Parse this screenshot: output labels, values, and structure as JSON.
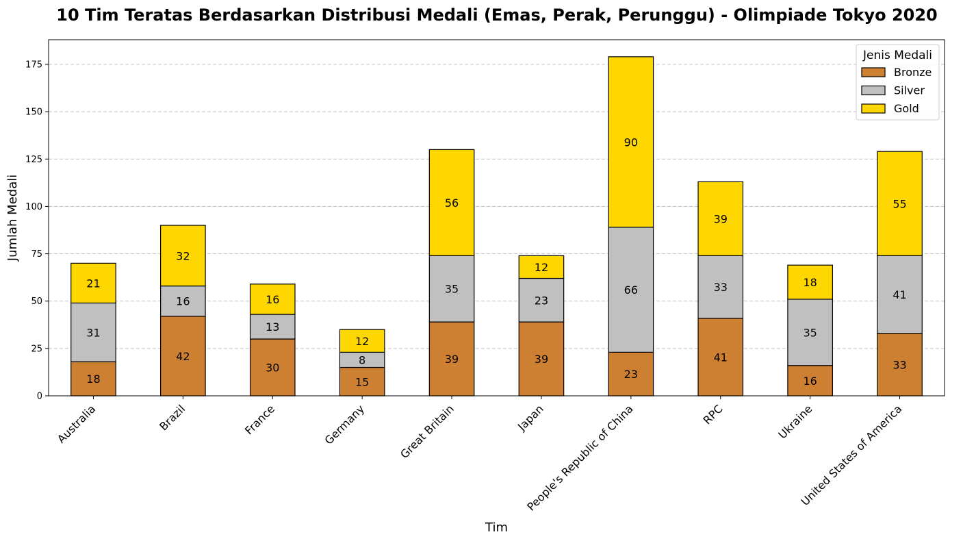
{
  "chart_data": {
    "type": "bar",
    "stacked": true,
    "title": "10 Tim Teratas Berdasarkan Distribusi Medali (Emas, Perak, Perunggu) - Olimpiade Tokyo 2020",
    "xlabel": "Tim",
    "ylabel": "Jumlah Medali",
    "ylim": [
      0,
      188
    ],
    "yticks": [
      0,
      25,
      50,
      75,
      100,
      125,
      150,
      175
    ],
    "grid": "horizontal dashed",
    "legend": {
      "title": "Jenis Medali",
      "placement": "top-right"
    },
    "categories": [
      "Australia",
      "Brazil",
      "France",
      "Germany",
      "Great Britain",
      "Japan",
      "People's Republic of China",
      "RPC",
      "Ukraine",
      "United States of America"
    ],
    "series": [
      {
        "name": "Bronze",
        "color": "#CD7F32",
        "values": [
          18,
          42,
          30,
          15,
          39,
          39,
          23,
          41,
          16,
          33
        ]
      },
      {
        "name": "Silver",
        "color": "#C0C0C0",
        "values": [
          31,
          16,
          13,
          8,
          35,
          23,
          66,
          33,
          35,
          41
        ]
      },
      {
        "name": "Gold",
        "color": "#FFD700",
        "values": [
          21,
          32,
          16,
          12,
          56,
          12,
          90,
          39,
          18,
          55
        ]
      }
    ]
  }
}
